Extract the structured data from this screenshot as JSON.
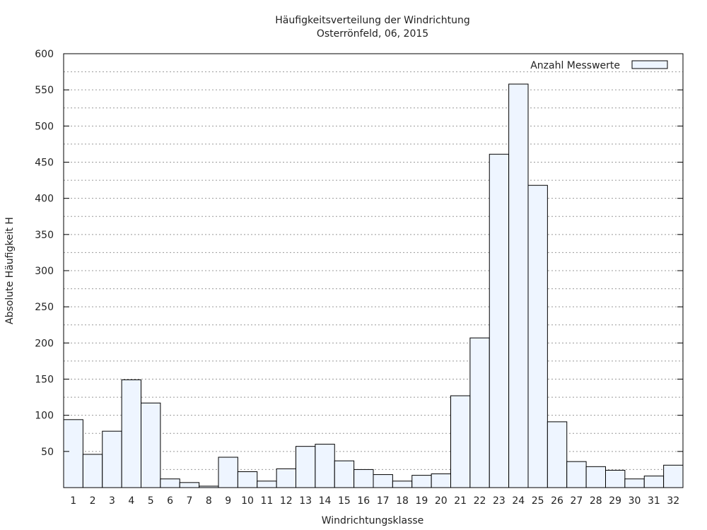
{
  "chart_data": {
    "type": "bar",
    "title": "Häufigkeitsverteilung der Windrichtung",
    "subtitle": "Osterrönfeld, 06, 2015",
    "xlabel": "Windrichtungsklasse",
    "ylabel": "Absolute Häufigkeit H",
    "ylim": [
      0,
      600
    ],
    "yticks": [
      50,
      100,
      150,
      200,
      250,
      300,
      350,
      400,
      450,
      500,
      550,
      600
    ],
    "grid": true,
    "legend_position": "top-right",
    "categories": [
      "1",
      "2",
      "3",
      "4",
      "5",
      "6",
      "7",
      "8",
      "9",
      "10",
      "11",
      "12",
      "13",
      "14",
      "15",
      "16",
      "17",
      "18",
      "19",
      "20",
      "21",
      "22",
      "23",
      "24",
      "25",
      "26",
      "27",
      "28",
      "29",
      "30",
      "31",
      "32"
    ],
    "series": [
      {
        "name": "Anzahl Messwerte",
        "color": "#eef5ff",
        "values": [
          94,
          46,
          78,
          149,
          117,
          12,
          7,
          2,
          42,
          22,
          9,
          26,
          57,
          60,
          37,
          25,
          18,
          9,
          17,
          19,
          127,
          207,
          461,
          558,
          418,
          91,
          36,
          29,
          24,
          12,
          16,
          31
        ]
      }
    ]
  }
}
